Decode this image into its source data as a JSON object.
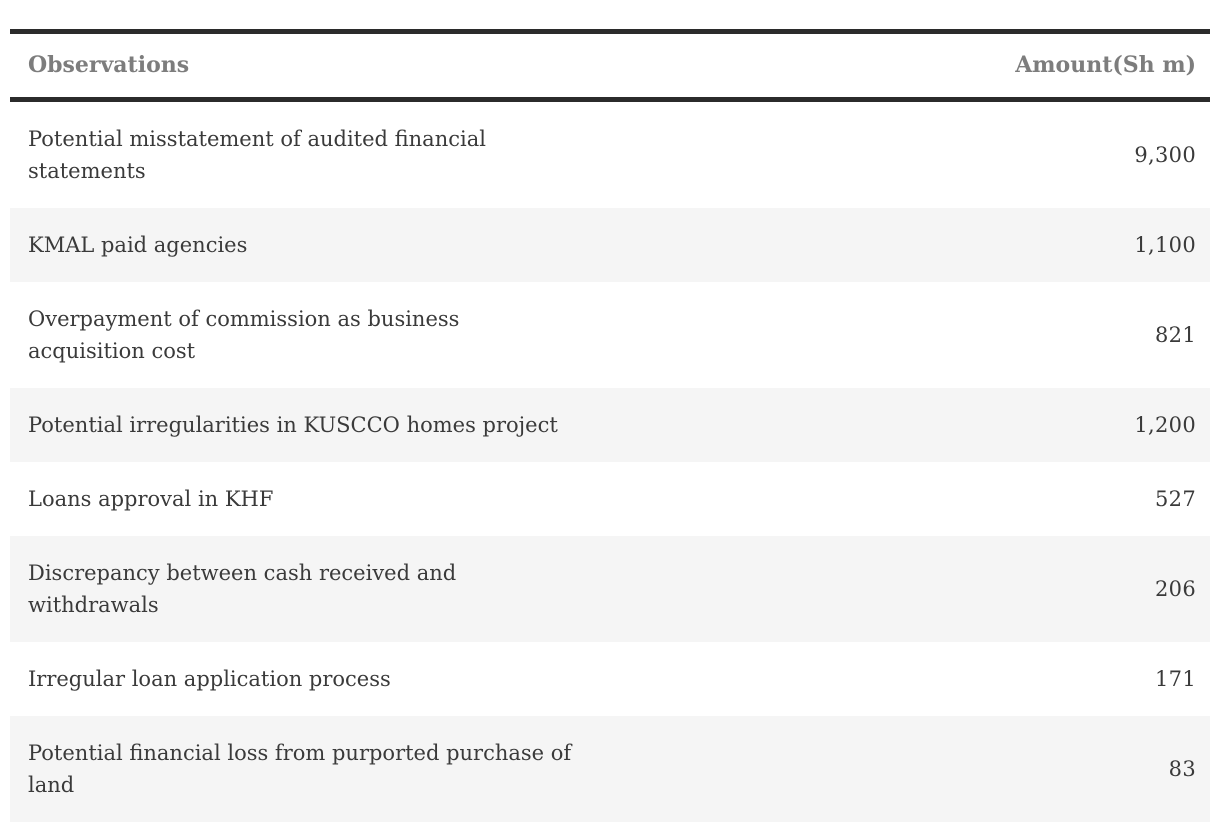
{
  "table": {
    "columns": {
      "observations_label": "Observations",
      "amount_label": "Amount(Sh m)"
    },
    "rows": [
      {
        "observation": "Potential misstatement of audited financial\nstatements",
        "amount": "9,300"
      },
      {
        "observation": "KMAL paid agencies",
        "amount": "1,100"
      },
      {
        "observation": "Overpayment of commission as business\nacquisition cost",
        "amount": "821"
      },
      {
        "observation": "Potential irregularities in KUSCCO homes project",
        "amount": "1,200"
      },
      {
        "observation": "Loans approval in KHF",
        "amount": "527"
      },
      {
        "observation": "Discrepancy between cash received and\nwithdrawals",
        "amount": "206"
      },
      {
        "observation": "Irregular loan application process",
        "amount": "171"
      },
      {
        "observation": "Potential financial loss from purported purchase of\nland",
        "amount": "83"
      }
    ]
  },
  "chart_data": {
    "type": "table",
    "columns": [
      "Observations",
      "Amount(Sh m)"
    ],
    "rows": [
      [
        "Potential misstatement of audited financial statements",
        9300
      ],
      [
        "KMAL paid agencies",
        1100
      ],
      [
        "Overpayment of commission as business acquisition cost",
        821
      ],
      [
        "Potential irregularities in KUSCCO homes project",
        1200
      ],
      [
        "Loans approval in KHF",
        527
      ],
      [
        "Discrepancy between cash received and withdrawals",
        206
      ],
      [
        "Irregular loan application process",
        171
      ],
      [
        "Potential financial loss from purported purchase of land",
        83
      ]
    ],
    "layout_hints": {
      "striped_rows": true,
      "thick_rules_above_and_below_header": true,
      "amount_column_alignment": "right"
    }
  },
  "colors": {
    "rule": "#2b2b2b",
    "header_text": "#7d7d7d",
    "body_text": "#3a3a3a",
    "stripe": "#f5f5f5",
    "background": "#ffffff"
  }
}
